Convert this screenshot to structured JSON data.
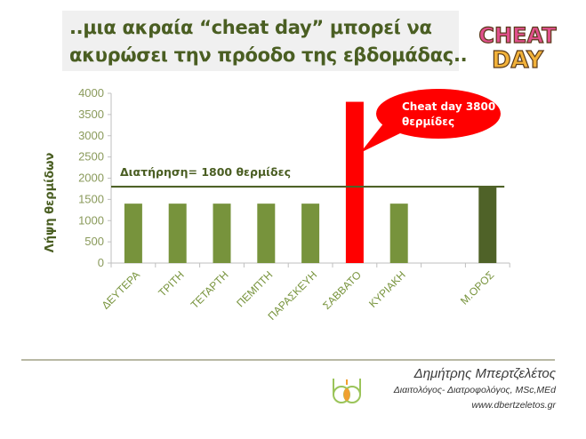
{
  "title": {
    "line1": "..μια ακραία “cheat day” μπορεί να",
    "line2": "ακυρώσει την πρόοδο της εβδομάδας.."
  },
  "logo": {
    "icon": "cheat-day-logo",
    "text_top": "CHEAT",
    "text_bottom": "DAY"
  },
  "chart_data": {
    "type": "bar",
    "title": "..μια ακραία “cheat day” μπορεί να ακυρώσει την πρόοδο της εβδομάδας..",
    "xlabel": "",
    "ylabel": "Λήψη θερμίδων",
    "ylim": [
      0,
      4000
    ],
    "yticks": [
      0,
      500,
      1000,
      1500,
      2000,
      2500,
      3000,
      3500,
      4000
    ],
    "categories": [
      "ΔΕΥΤΕΡΑ",
      "ΤΡΙΤΗ",
      "ΤΕΤΑΡΤΗ",
      "ΠΕΜΠΤΗ",
      "ΠΑΡΑΣΚΕΥΗ",
      "ΣΑΒΒΑΤΟ",
      "ΚΥΡΙΑΚΗ",
      "",
      "Μ.ΟΡΟΣ"
    ],
    "values": [
      1400,
      1400,
      1400,
      1400,
      1400,
      3800,
      1400,
      null,
      1800
    ],
    "bar_colors": [
      "#77933c",
      "#77933c",
      "#77933c",
      "#77933c",
      "#77933c",
      "#ff0000",
      "#77933c",
      null,
      "#4f6228"
    ],
    "reference_line": {
      "value": 1800,
      "label": "Διατήρηση= 1800 θερμίδες",
      "color": "#4f6228"
    },
    "annotations": [
      {
        "text_line1": "Cheat day 3800",
        "text_line2": "θερμίδες",
        "target": "ΣΑΒΒΑΤΟ",
        "color": "#ff0000"
      }
    ],
    "grid": false,
    "legend": "none"
  },
  "footer": {
    "name": "Δημήτρης Μπερτζελέτος",
    "role": "Διαιτολόγος- Διατροφολόγος, MSc,MEd",
    "website": "www.dbertzeletos.gr"
  },
  "colors": {
    "title_text": "#4a5e22",
    "bar_green": "#77933c",
    "bar_red": "#ff0000",
    "bar_dark": "#4f6228"
  }
}
